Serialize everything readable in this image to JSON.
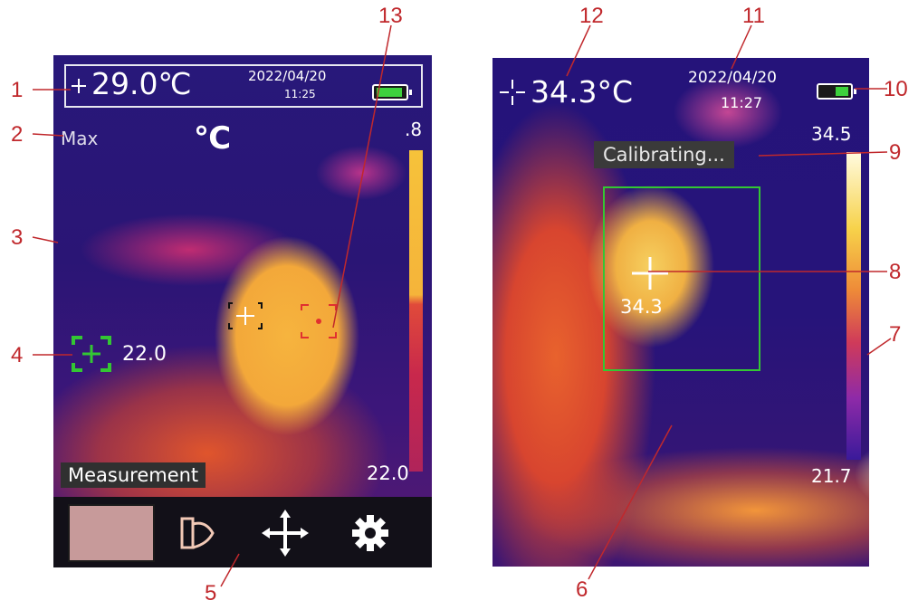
{
  "screen1": {
    "center_temp": "29.0℃",
    "date": "2022/04/20",
    "time": "11:25",
    "mode": "Max",
    "unit": "℃",
    "scale_max": ".8",
    "scale_min": "22.0",
    "marker_temp": "22.0",
    "mode_label": "Measurement",
    "toolbar_icons": [
      "blank-tile-icon",
      "palette-icon",
      "move-arrows-icon",
      "gear-icon"
    ],
    "battery_level": 0.85
  },
  "screen2": {
    "center_temp": "34.3°C",
    "date": "2022/04/20",
    "time": "11:27",
    "scale_max": "34.5",
    "scale_min": "21.7",
    "status": "Calibrating...",
    "box_center_temp": "34.3",
    "battery_level": 0.4
  },
  "callouts": [
    "1",
    "2",
    "3",
    "4",
    "5",
    "6",
    "7",
    "8",
    "9",
    "10",
    "11",
    "12",
    "13"
  ],
  "colors": {
    "callout": "#c0282c",
    "box": "#33c733",
    "marker_green": "#33c733",
    "marker_red": "#e03030"
  }
}
